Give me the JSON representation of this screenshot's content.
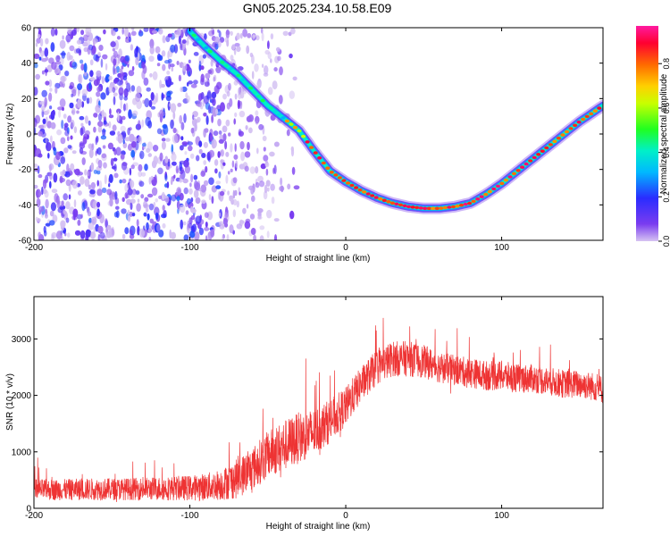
{
  "title": "GN05.2025.234.10.58.E09",
  "chart_data": [
    {
      "type": "heatmap",
      "xlabel": "Height of straight line (km)",
      "ylabel": "Frequency (Hz)",
      "xlim": [
        -200,
        165
      ],
      "ylim": [
        -60,
        60
      ],
      "xticks": [
        -200,
        -100,
        0,
        100
      ],
      "yticks": [
        60,
        40,
        20,
        0,
        -20,
        -40,
        -60
      ],
      "colorbar": {
        "label": "Normalized spectral amplitude",
        "range": [
          0,
          0.97
        ],
        "ticks": [
          "0.0",
          "0.2",
          "0.4",
          "0.6",
          "0.8"
        ],
        "colormap": "rainbow (purple → blue → cyan → green → yellow → red → magenta)"
      },
      "ridge_curve": {
        "description": "Doppler curve of maximum amplitude",
        "x": [
          -100,
          -90,
          -80,
          -70,
          -60,
          -50,
          -40,
          -30,
          -20,
          -10,
          0,
          10,
          20,
          30,
          40,
          50,
          60,
          70,
          80,
          90,
          100,
          110,
          120,
          130,
          140,
          150,
          160,
          165
        ],
        "y": [
          58,
          49,
          41,
          34,
          25,
          16,
          9,
          2,
          -10,
          -21,
          -27,
          -32,
          -36,
          -39,
          -41,
          -42,
          -42,
          -41,
          -39,
          -34,
          -28,
          -21,
          -14,
          -7,
          0,
          7,
          13,
          16
        ],
        "peak_amplitude": 0.95
      },
      "noise_region": {
        "x_range": [
          -200,
          -40
        ],
        "amplitude_range": [
          0.0,
          0.25
        ]
      }
    },
    {
      "type": "line",
      "xlabel": "Height of straight line (km)",
      "ylabel": "SNR (10 * v/v)",
      "xlim": [
        -200,
        165
      ],
      "ylim": [
        0,
        3750
      ],
      "xticks": [
        -200,
        -100,
        0,
        100
      ],
      "yticks": [
        0,
        1000,
        2000,
        3000
      ],
      "color": "#ee3333",
      "x": [
        -200,
        -180,
        -160,
        -140,
        -120,
        -100,
        -90,
        -80,
        -70,
        -60,
        -50,
        -40,
        -30,
        -20,
        -10,
        0,
        10,
        20,
        30,
        40,
        50,
        60,
        70,
        80,
        90,
        100,
        110,
        120,
        130,
        140,
        150,
        160,
        165
      ],
      "y": [
        330,
        330,
        340,
        340,
        350,
        360,
        380,
        420,
        520,
        700,
        950,
        1100,
        1250,
        1350,
        1550,
        1800,
        2200,
        2500,
        2650,
        2650,
        2600,
        2500,
        2450,
        2400,
        2350,
        2350,
        2300,
        2300,
        2250,
        2200,
        2200,
        2150,
        2100
      ],
      "spread": [
        270,
        270,
        280,
        280,
        300,
        320,
        350,
        400,
        500,
        550,
        600,
        650,
        650,
        600,
        550,
        500,
        450,
        450,
        450,
        450,
        420,
        400,
        380,
        380,
        380,
        380,
        370,
        360,
        360,
        360,
        360,
        360,
        360
      ]
    }
  ]
}
